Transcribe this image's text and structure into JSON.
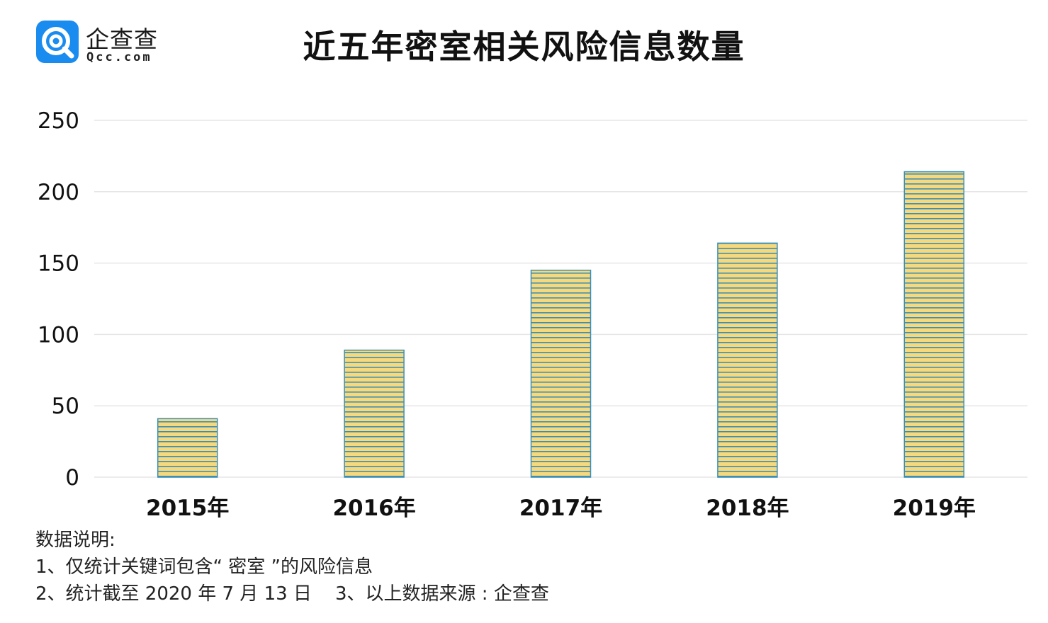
{
  "brand": {
    "name": "企查查",
    "domain": "Qcc.com",
    "colors": {
      "primary": "#1a8cf0"
    }
  },
  "title": "近五年密室相关风险信息数量",
  "chart_data": {
    "type": "bar",
    "categories": [
      "2015年",
      "2016年",
      "2017年",
      "2018年",
      "2019年"
    ],
    "values": [
      41,
      89,
      145,
      164,
      214
    ],
    "ylim": [
      0,
      250
    ],
    "yticks": [
      0,
      50,
      100,
      150,
      200,
      250
    ],
    "grid": true,
    "legend": "none",
    "colors": {
      "bar_fill": "#f7d97c",
      "bar_stripe": "#3a8fb8",
      "grid": "#e6e6e6"
    }
  },
  "notes": {
    "heading": "数据说明:",
    "line1": "1、仅统计关键词包含“ 密室 ”的风险信息",
    "line2": "2、统计截至 2020 年 7 月 13 日    3、以上数据来源 : 企查查"
  }
}
